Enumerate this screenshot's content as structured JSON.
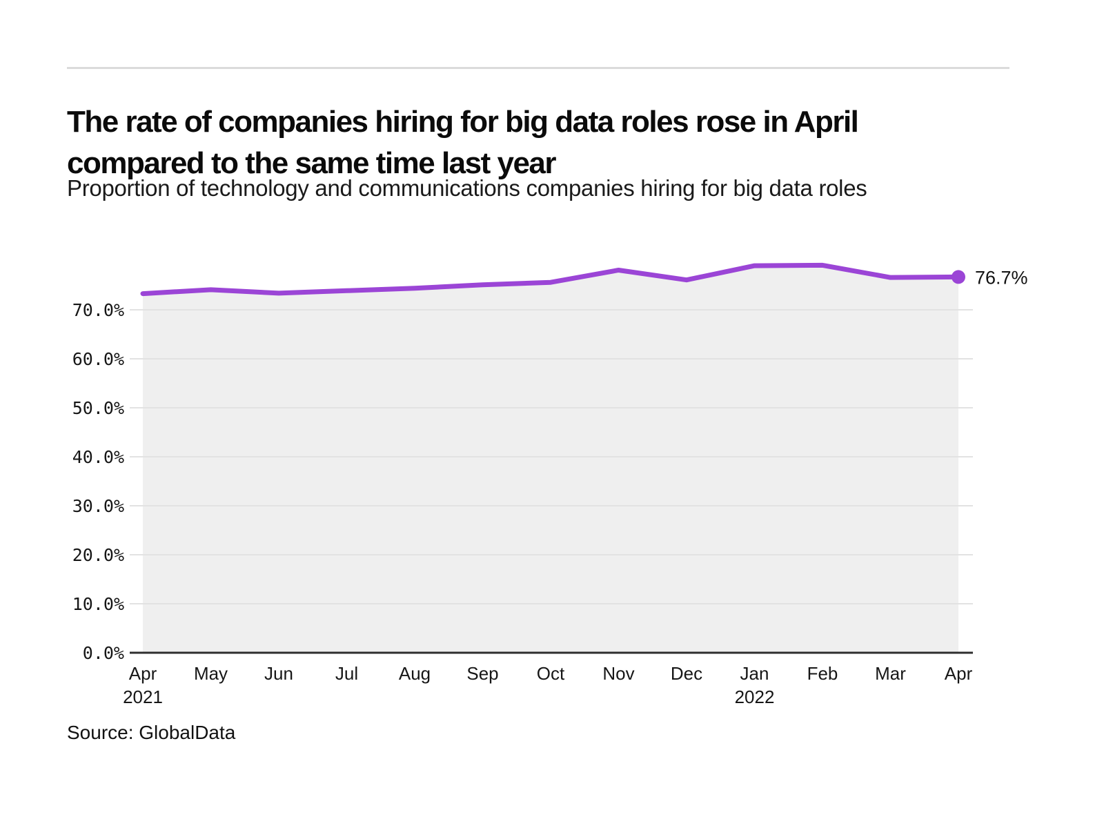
{
  "chart_data": {
    "type": "line",
    "title": "The rate of companies hiring for big data roles rose in April compared to the same time last year",
    "subtitle": "Proportion of technology and communications companies hiring for big data roles",
    "source": "Source: GlobalData",
    "categories": [
      "Apr",
      "May",
      "Jun",
      "Jul",
      "Aug",
      "Sep",
      "Oct",
      "Nov",
      "Dec",
      "Jan",
      "Feb",
      "Mar",
      "Apr"
    ],
    "year_markers": [
      {
        "index": 0,
        "label": "2021"
      },
      {
        "index": 9,
        "label": "2022"
      }
    ],
    "series": [
      {
        "name": "Proportion of companies hiring for big data roles",
        "values": [
          73.3,
          74.1,
          73.4,
          73.9,
          74.4,
          75.1,
          75.6,
          78.1,
          76.1,
          79.0,
          79.1,
          76.6,
          76.7
        ],
        "color": "#9b45d6"
      }
    ],
    "end_label": "76.7%",
    "xlabel": "",
    "ylabel": "",
    "ytick_values": [
      0,
      10,
      20,
      30,
      40,
      50,
      60,
      70
    ],
    "ytick_labels": [
      "0.0%",
      "10.0%",
      "20.0%",
      "30.0%",
      "40.0%",
      "50.0%",
      "60.0%",
      "70.0%"
    ],
    "ylim": [
      0,
      82
    ],
    "grid": true,
    "legend_position": "none",
    "colors": {
      "line": "#9b45d6",
      "marker": "#9b45d6",
      "area_fill": "#efefef",
      "gridline": "#e2e2e2",
      "axis": "#2e2e2e",
      "divider": "#dbdbdb",
      "title_text": "#0b0b0b",
      "tick_text": "#161616"
    }
  }
}
